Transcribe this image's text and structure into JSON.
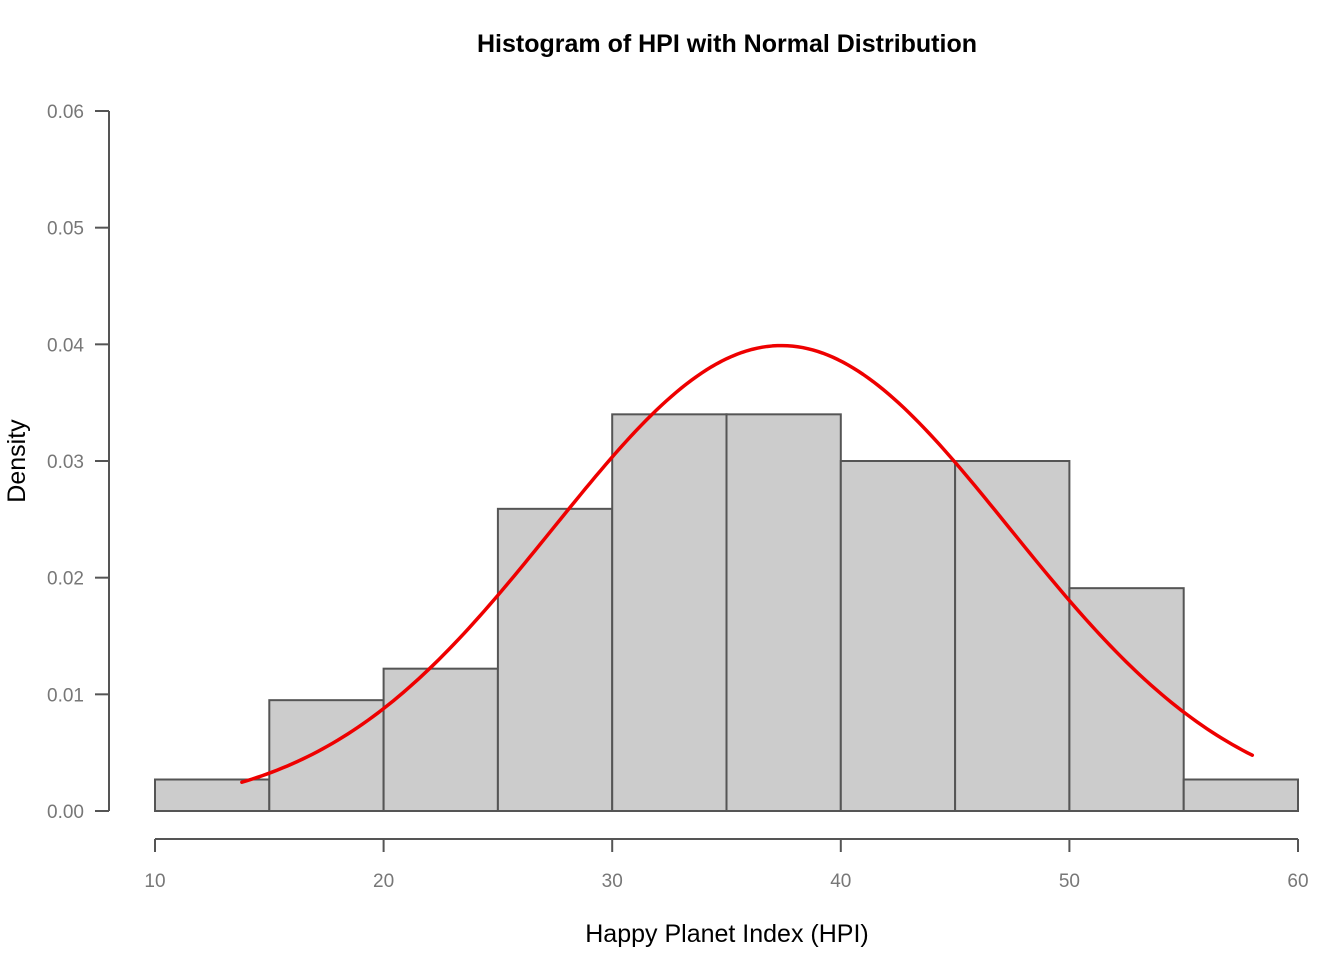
{
  "chart_data": {
    "type": "bar",
    "subtype": "histogram",
    "title": "Histogram of HPI with Normal Distribution",
    "xlabel": "Happy Planet Index (HPI)",
    "ylabel": "Density",
    "xlim": [
      10,
      60
    ],
    "ylim": [
      0,
      0.06
    ],
    "x_ticks": [
      10,
      20,
      30,
      40,
      50,
      60
    ],
    "y_ticks": [
      0.0,
      0.01,
      0.02,
      0.03,
      0.04,
      0.05,
      0.06
    ],
    "y_tick_labels": [
      "0.00",
      "0.01",
      "0.02",
      "0.03",
      "0.04",
      "0.05",
      "0.06"
    ],
    "x_tick_labels": [
      "10",
      "20",
      "30",
      "40",
      "50",
      "60"
    ],
    "bins": [
      {
        "start": 10,
        "end": 15,
        "density": 0.0027
      },
      {
        "start": 15,
        "end": 20,
        "density": 0.0095
      },
      {
        "start": 20,
        "end": 25,
        "density": 0.0122
      },
      {
        "start": 25,
        "end": 30,
        "density": 0.0259
      },
      {
        "start": 30,
        "end": 35,
        "density": 0.034
      },
      {
        "start": 35,
        "end": 40,
        "density": 0.034
      },
      {
        "start": 40,
        "end": 45,
        "density": 0.03
      },
      {
        "start": 45,
        "end": 50,
        "density": 0.03
      },
      {
        "start": 50,
        "end": 55,
        "density": 0.0191
      },
      {
        "start": 55,
        "end": 60,
        "density": 0.0027
      }
    ],
    "normal_curve": {
      "mean": 37.4,
      "sd": 10.0,
      "x_range": [
        13.8,
        58.0
      ],
      "color": "#ee0000"
    },
    "bar_fill": "#cccccc",
    "bar_stroke": "#555555",
    "grid": false,
    "legend": "none"
  }
}
